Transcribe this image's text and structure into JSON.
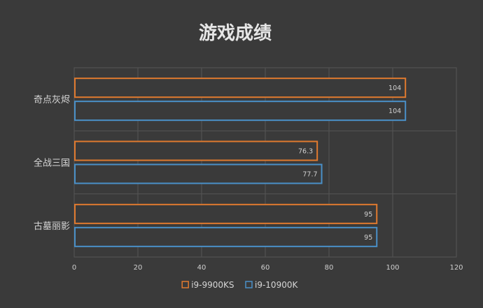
{
  "chart_data": {
    "type": "bar",
    "orientation": "horizontal",
    "title": "游戏成绩",
    "categories": [
      "奇点灰烬",
      "全战三国",
      "古墓丽影"
    ],
    "series": [
      {
        "name": "i9-9900KS",
        "color": "#e07a2f",
        "values": [
          104,
          76.3,
          95
        ],
        "labels": [
          "104",
          "76.3",
          "95"
        ]
      },
      {
        "name": "i9-10900K",
        "color": "#4a90c8",
        "values": [
          104,
          77.7,
          95
        ],
        "labels": [
          "104",
          "77.7",
          "95"
        ]
      }
    ],
    "xlim": [
      0,
      120
    ],
    "xticks": [
      0,
      20,
      40,
      60,
      80,
      100,
      120
    ],
    "grid": true,
    "legend_position": "bottom"
  },
  "colors": {
    "background": "#3a3a3a",
    "grid": "#555555",
    "bar_fill": "#3a3a3a"
  }
}
